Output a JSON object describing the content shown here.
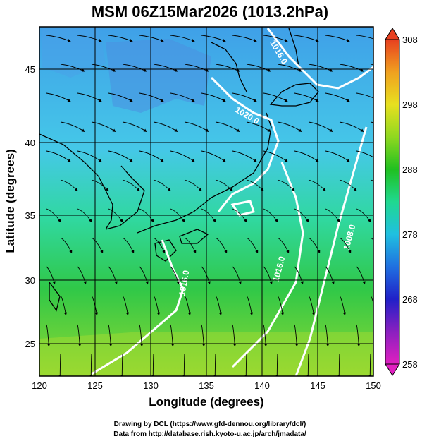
{
  "title": "MSM 06Z15Mar2026 (1013.2hPa)",
  "xaxis": {
    "label": "Longitude (degrees)",
    "ticks": [
      120,
      125,
      130,
      135,
      140,
      145,
      150
    ],
    "range": [
      120,
      150
    ]
  },
  "yaxis": {
    "label": "Latitude  (degrees)",
    "ticks": [
      25,
      30,
      35,
      40,
      45
    ],
    "range": [
      22.4,
      47.6
    ]
  },
  "colorbar": {
    "ticks": [
      258,
      268,
      278,
      288,
      298,
      308
    ],
    "range": [
      258,
      308
    ],
    "colors": [
      "#e020c0",
      "#8a20c0",
      "#2020c8",
      "#2070e0",
      "#20c0e0",
      "#20d890",
      "#20c020",
      "#90d820",
      "#e8e020",
      "#f0a020",
      "#e84020"
    ]
  },
  "isobars": [
    {
      "label": "1016.0"
    },
    {
      "label": "1020.0"
    },
    {
      "label": "1016.0"
    },
    {
      "label": "1016.0"
    },
    {
      "label": "1008.0"
    }
  ],
  "footer": {
    "line1": "Drawing by DCL (https://www.gfd-dennou.org/library/dcl/)",
    "line2": "Data from http://database.rish.kyoto-u.ac.jp/arch/jmadata/"
  }
}
